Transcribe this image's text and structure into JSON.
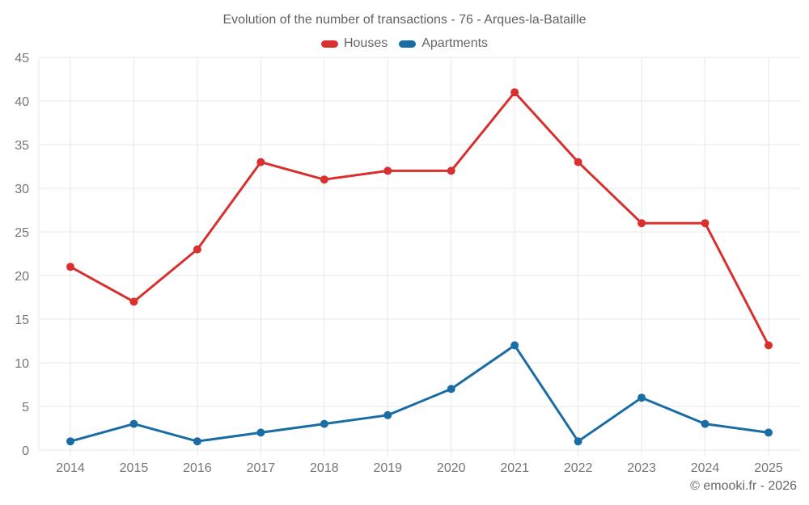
{
  "header": {
    "title": "Evolution of the number of transactions - 76 - Arques-la-Bataille"
  },
  "legend": {
    "items": [
      {
        "label": "Houses",
        "color": "#d8302e"
      },
      {
        "label": "Apartments",
        "color": "#1a6ca4"
      }
    ]
  },
  "footer": {
    "credit": "© emooki.fr - 2026"
  },
  "colors": {
    "grid": "#e7e7e7",
    "axis_text": "#757575",
    "title_text": "#616161"
  },
  "chart_data": {
    "type": "line",
    "title": "Evolution of the number of transactions - 76 - Arques-la-Bataille",
    "categories": [
      "2014",
      "2015",
      "2016",
      "2017",
      "2018",
      "2019",
      "2020",
      "2021",
      "2022",
      "2023",
      "2024",
      "2025"
    ],
    "series": [
      {
        "name": "Houses",
        "color": "#d8302e",
        "values": [
          21,
          17,
          23,
          33,
          31,
          32,
          32,
          41,
          33,
          26,
          26,
          12
        ]
      },
      {
        "name": "Apartments",
        "color": "#1a6ca4",
        "values": [
          1,
          3,
          1,
          2,
          3,
          4,
          7,
          12,
          1,
          6,
          3,
          2
        ]
      }
    ],
    "xlabel": "",
    "ylabel": "",
    "ylim": [
      0,
      45
    ],
    "ytick_step": 5,
    "grid": true,
    "legend_position": "top",
    "marker_radius": 5,
    "line_width": 3
  }
}
